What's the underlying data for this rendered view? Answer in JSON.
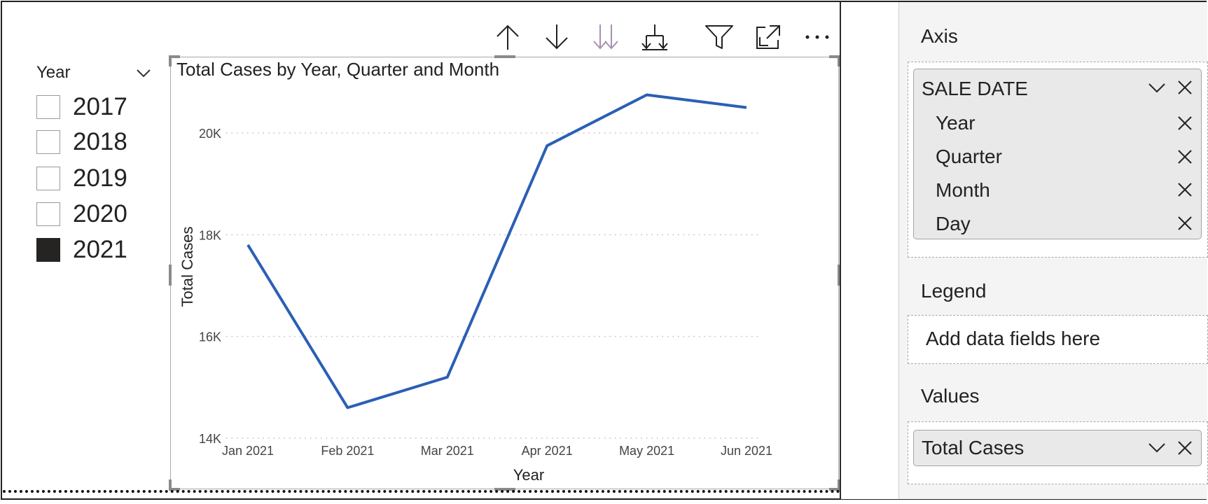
{
  "slicer": {
    "title": "Year",
    "items": [
      {
        "label": "2017",
        "checked": false
      },
      {
        "label": "2018",
        "checked": false
      },
      {
        "label": "2019",
        "checked": false
      },
      {
        "label": "2020",
        "checked": false
      },
      {
        "label": "2021",
        "checked": true
      }
    ]
  },
  "toolbar": {
    "icons": [
      "drill-up-icon",
      "drill-down-icon",
      "expand-next-level-icon",
      "expand-hierarchy-icon",
      "filter-icon",
      "focus-mode-icon",
      "more-options-icon"
    ]
  },
  "chart_data": {
    "type": "line",
    "title": "Total Cases by Year, Quarter and Month",
    "xlabel": "Year",
    "ylabel": "Total Cases",
    "categories": [
      "Jan 2021",
      "Feb 2021",
      "Mar 2021",
      "Apr 2021",
      "May 2021",
      "Jun 2021"
    ],
    "series": [
      {
        "values": [
          17800,
          14600,
          15200,
          19750,
          20750,
          20500
        ]
      }
    ],
    "ylim": [
      14000,
      20000
    ],
    "yticks": [
      14000,
      16000,
      18000,
      20000
    ],
    "ytick_labels": [
      "14K",
      "16K",
      "18K",
      "20K"
    ],
    "grid": true,
    "line_color": "#2b5fb4"
  },
  "fields_pane": {
    "axis": {
      "label": "Axis",
      "card_title": "SALE DATE",
      "fields": [
        "Year",
        "Quarter",
        "Month",
        "Day"
      ]
    },
    "legend": {
      "label": "Legend",
      "placeholder": "Add data fields here"
    },
    "values": {
      "label": "Values",
      "field": "Total Cases"
    }
  }
}
